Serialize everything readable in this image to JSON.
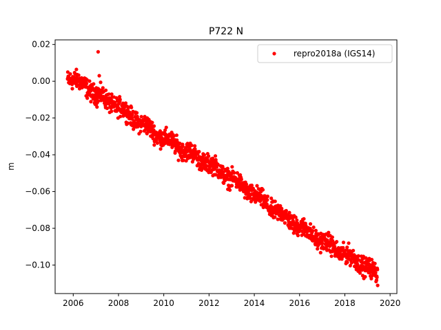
{
  "chart_data": {
    "type": "scatter",
    "title": "P722 N",
    "xlabel": "",
    "ylabel": "m",
    "xlim": [
      2005.2,
      2020.3
    ],
    "ylim": [
      -0.1155,
      0.0225
    ],
    "x_ticks": [
      2006,
      2008,
      2010,
      2012,
      2014,
      2016,
      2018,
      2020
    ],
    "y_ticks": [
      0.02,
      0.0,
      -0.02,
      -0.04,
      -0.06,
      -0.08,
      -0.1
    ],
    "y_tick_labels": [
      "0.02",
      "0.00",
      "−0.02",
      "−0.04",
      "−0.06",
      "−0.08",
      "−0.10"
    ],
    "grid": false,
    "legend_position": "top-right",
    "series": [
      {
        "name": "repro2018a (IGS14)",
        "color": "#ff0000",
        "marker": "circle",
        "x_start": 2005.75,
        "x_end": 2019.45,
        "sampling_years": 0.01,
        "trend": [
          {
            "x": 2005.75,
            "y": 0.002
          },
          {
            "x": 2006.5,
            "y": -0.002
          },
          {
            "x": 2007.0,
            "y": -0.007
          },
          {
            "x": 2008.0,
            "y": -0.014
          },
          {
            "x": 2009.0,
            "y": -0.023
          },
          {
            "x": 2010.0,
            "y": -0.031
          },
          {
            "x": 2011.0,
            "y": -0.038
          },
          {
            "x": 2012.0,
            "y": -0.045
          },
          {
            "x": 2013.0,
            "y": -0.053
          },
          {
            "x": 2014.0,
            "y": -0.062
          },
          {
            "x": 2015.0,
            "y": -0.071
          },
          {
            "x": 2016.0,
            "y": -0.079
          },
          {
            "x": 2017.0,
            "y": -0.087
          },
          {
            "x": 2018.0,
            "y": -0.094
          },
          {
            "x": 2019.0,
            "y": -0.101
          },
          {
            "x": 2019.45,
            "y": -0.106
          }
        ],
        "scatter_amplitude": 0.0025,
        "outliers": [
          {
            "x": 2007.1,
            "y": 0.016
          },
          {
            "x": 2007.15,
            "y": 0.003
          },
          {
            "x": 2007.05,
            "y": -0.014
          }
        ]
      }
    ]
  }
}
